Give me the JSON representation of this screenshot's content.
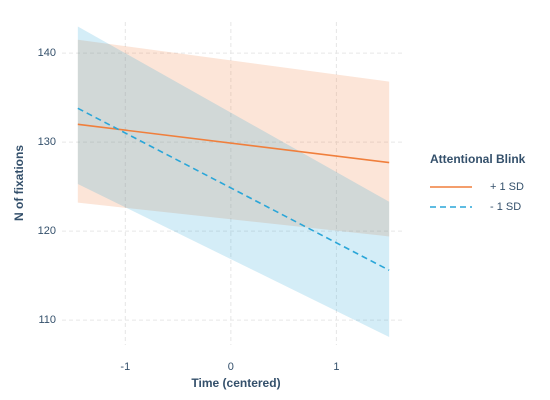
{
  "chart_data": {
    "type": "line",
    "x_label": "Time (centered)",
    "y_label": "N of fixations",
    "x": [
      -1.45,
      1.5
    ],
    "series": [
      {
        "name": "+ 1 SD",
        "color": "#f07f3c",
        "linestyle": "solid",
        "values": [
          132,
          127.7
        ],
        "lower": [
          123.2,
          119.4
        ],
        "upper": [
          141.5,
          136.8
        ]
      },
      {
        "name": "- 1 SD",
        "color": "#2aa6d8",
        "linestyle": "dashed",
        "values": [
          133.8,
          115.6
        ],
        "lower": [
          125.3,
          108.1
        ],
        "upper": [
          143,
          123.3
        ]
      }
    ],
    "legend_title": "Attentional Blink",
    "legend": "right",
    "xlim": [
      -1.6,
      1.65
    ],
    "ylim": [
      107.2,
      143.5
    ],
    "xticks": [
      -1,
      0,
      1
    ],
    "yticks": [
      110,
      120,
      130,
      140
    ],
    "grid": true
  }
}
